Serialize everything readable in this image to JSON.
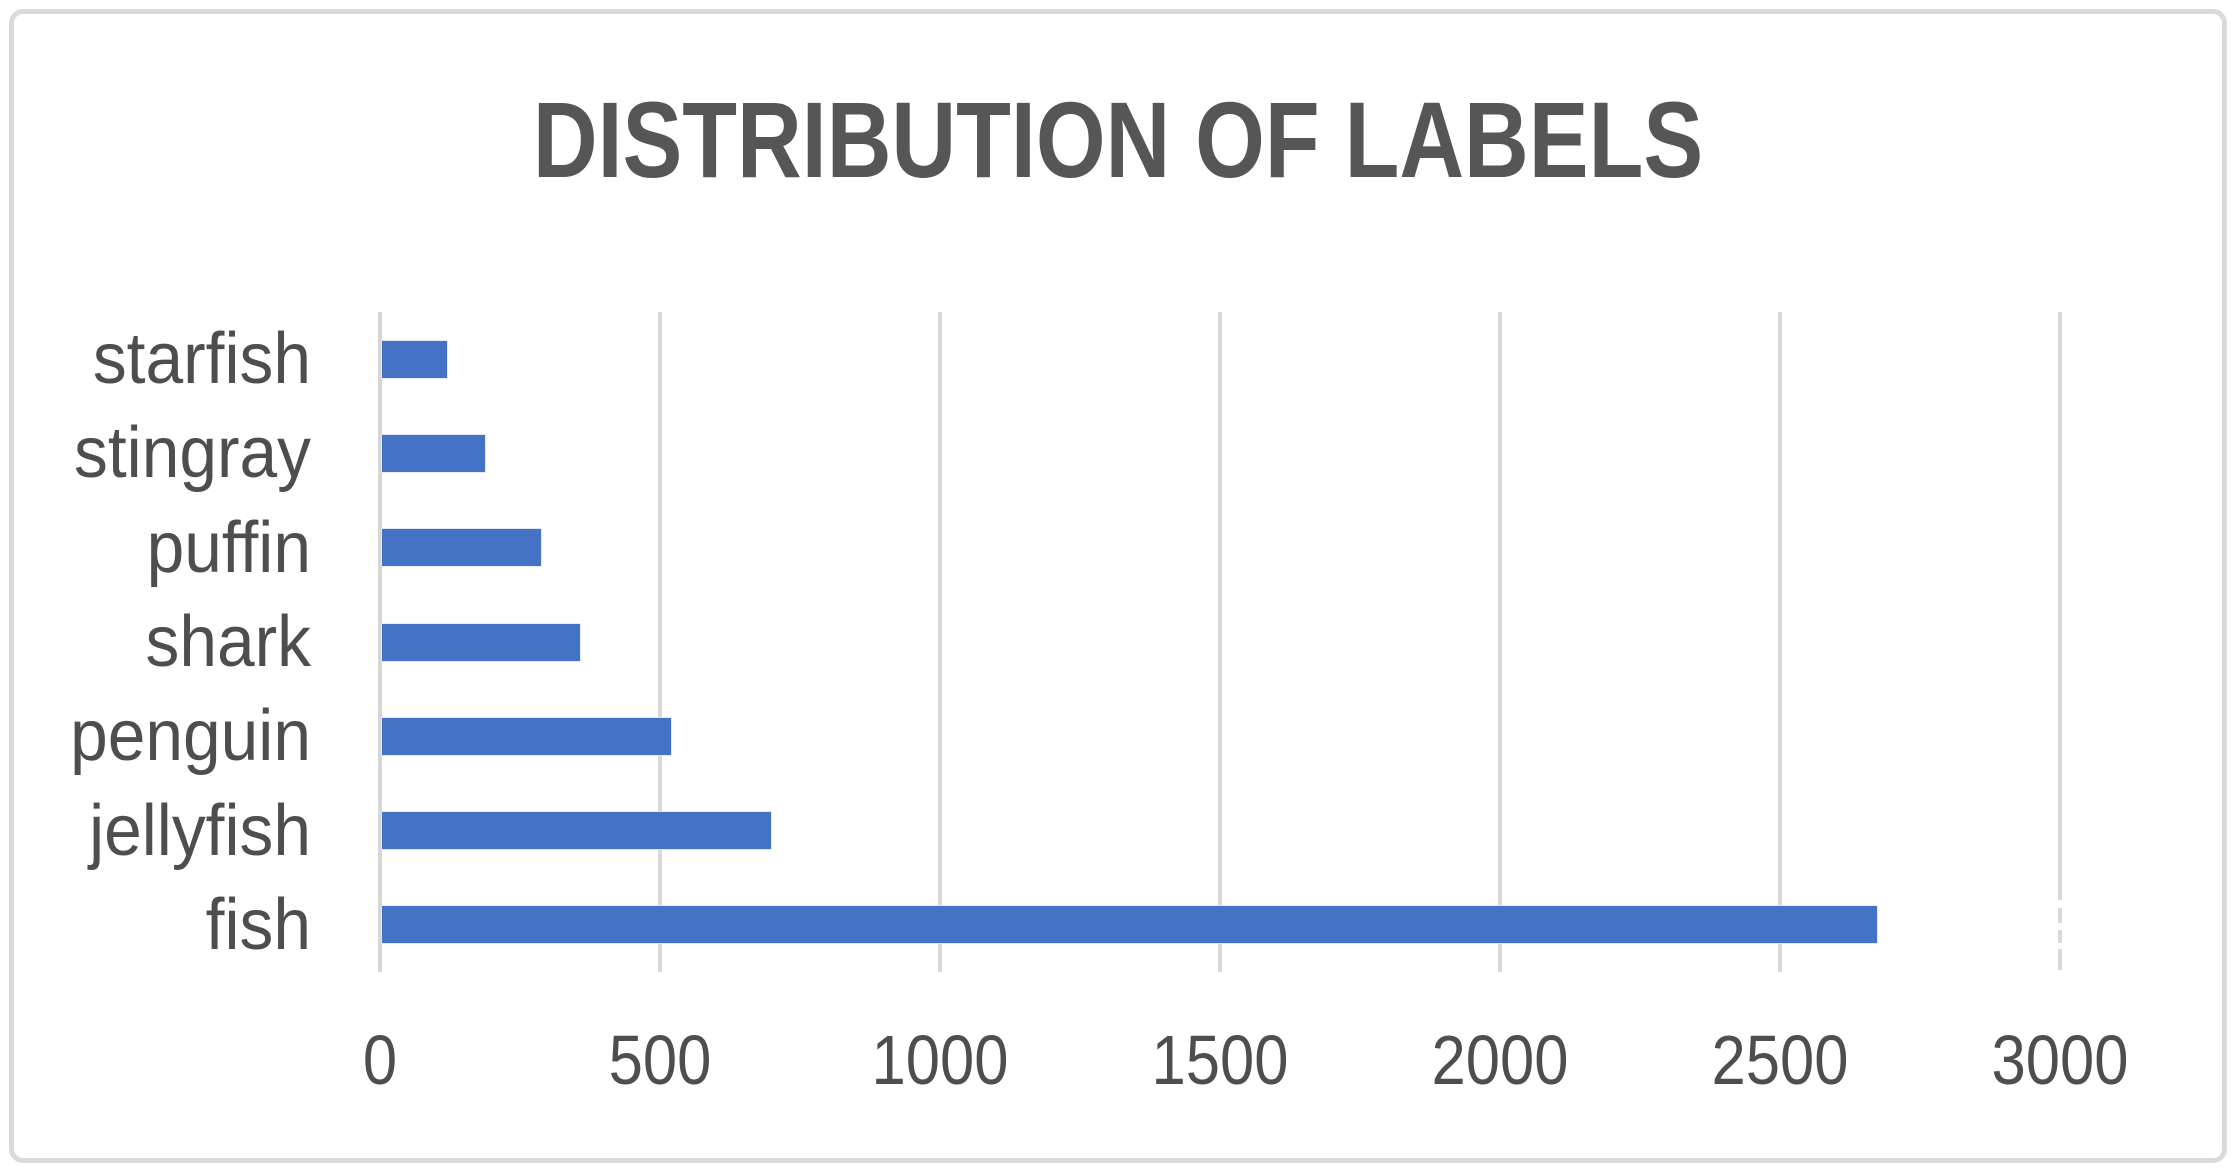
{
  "chart_data": {
    "type": "bar",
    "orientation": "horizontal",
    "title": "DISTRIBUTION OF LABELS",
    "categories": [
      "starfish",
      "stingray",
      "puffin",
      "shark",
      "penguin",
      "jellyfish",
      "fish"
    ],
    "values": [
      116,
      184,
      284,
      354,
      516,
      694,
      2669
    ],
    "xlabel": "",
    "ylabel": "",
    "x_ticks": [
      "0",
      "500",
      "1000",
      "1500",
      "2000",
      "2500",
      "3000"
    ],
    "x_tick_values": [
      0,
      500,
      1000,
      1500,
      2000,
      2500,
      3000
    ],
    "xlim": [
      0,
      3000
    ],
    "grid": "vertical",
    "legend_position": "none",
    "colors": {
      "bar": "#4472C4",
      "title_text": "#565656",
      "axis_text": "#4E4E4E",
      "gridline": "#D9D9D9",
      "frame_border": "#DADADA",
      "background": "#FFFFFF"
    }
  }
}
